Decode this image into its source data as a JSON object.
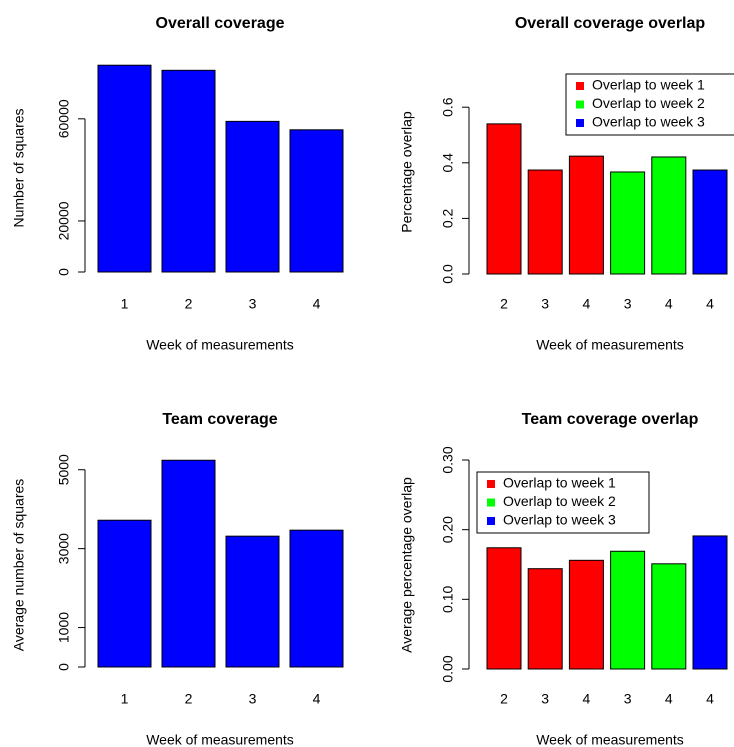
{
  "chart_data": [
    {
      "type": "bar",
      "title": "Overall coverage",
      "xlabel": "Week of measurements",
      "ylabel": "Number of squares",
      "categories": [
        "1",
        "2",
        "3",
        "4"
      ],
      "values": [
        81000,
        79000,
        59000,
        55700
      ],
      "color": "#0000ff",
      "ylim": [
        0,
        85000
      ],
      "yticks": [
        0,
        20000,
        60000
      ]
    },
    {
      "type": "bar",
      "title": "Overall coverage overlap",
      "xlabel": "Week of measurements",
      "ylabel": "Percentage overlap",
      "categories": [
        "2",
        "3",
        "4",
        "3",
        "4",
        "4"
      ],
      "series": [
        {
          "name": "Overlap to week 1",
          "color": "#ff0000",
          "values": [
            0.54,
            0.374,
            0.424,
            null,
            null,
            null
          ]
        },
        {
          "name": "Overlap to week 2",
          "color": "#00ff00",
          "values": [
            null,
            null,
            null,
            0.367,
            0.421,
            null
          ]
        },
        {
          "name": "Overlap to week 3",
          "color": "#0000ff",
          "values": [
            null,
            null,
            null,
            null,
            null,
            0.374
          ]
        }
      ],
      "ylim": [
        0,
        0.7
      ],
      "yticks": [
        {
          "value": 0,
          "label": "0.0"
        },
        0.2,
        0.4,
        0.6
      ],
      "legend": "topright"
    },
    {
      "type": "bar",
      "title": "Team coverage",
      "xlabel": "Week of measurements",
      "ylabel": "Average number of squares",
      "categories": [
        "1",
        "2",
        "3",
        "4"
      ],
      "values": [
        3720,
        5240,
        3316,
        3468
      ],
      "color": "#0000ff",
      "ylim": [
        0,
        5500
      ],
      "yticks": [
        0,
        1000,
        3000,
        5000
      ]
    },
    {
      "type": "bar",
      "title": "Team coverage overlap",
      "xlabel": "Week of measurements",
      "ylabel": "Average percentage overlap",
      "categories": [
        "2",
        "3",
        "4",
        "3",
        "4",
        "4"
      ],
      "series": [
        {
          "name": "Overlap to week 1",
          "color": "#ff0000",
          "values": [
            0.174,
            0.144,
            0.156,
            null,
            null,
            null
          ]
        },
        {
          "name": "Overlap to week 2",
          "color": "#00ff00",
          "values": [
            null,
            null,
            null,
            0.169,
            0.151,
            null
          ]
        },
        {
          "name": "Overlap to week 3",
          "color": "#0000ff",
          "values": [
            null,
            null,
            null,
            null,
            null,
            0.191
          ]
        }
      ],
      "ylim": [
        0,
        0.3
      ],
      "yticks": [
        {
          "value": 0,
          "label": "0.00"
        },
        {
          "value": 0.1,
          "label": "0.10"
        },
        {
          "value": 0.2,
          "label": "0.20"
        },
        {
          "value": 0.3,
          "label": "0.30"
        }
      ],
      "legend": "topleft"
    }
  ]
}
